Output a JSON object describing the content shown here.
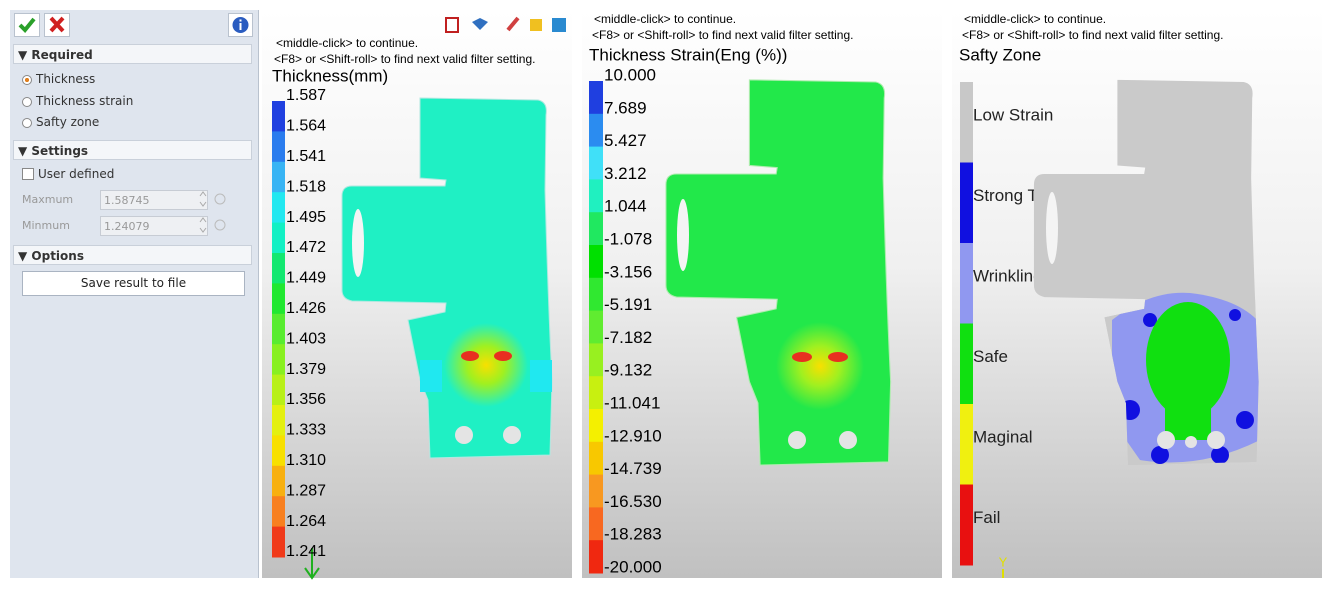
{
  "panel": {
    "required": {
      "title": "Required",
      "options": [
        "Thickness",
        "Thickness strain",
        "Safty zone"
      ]
    },
    "settings": {
      "title": "Settings",
      "checkbox": "User defined",
      "fields": [
        {
          "label": "Maxmum",
          "value": "1.58745"
        },
        {
          "label": "Minmum",
          "value": "1.24079"
        }
      ]
    },
    "options": {
      "title": "Options",
      "button": "Save result to file"
    }
  },
  "views": [
    {
      "hints": [
        "<middle-click> to continue.",
        "<F8> or <Shift-roll> to find next valid filter setting."
      ],
      "legend": {
        "title": "Thickness(mm)",
        "labels": [
          "1.587",
          "1.564",
          "1.541",
          "1.518",
          "1.495",
          "1.472",
          "1.449",
          "1.426",
          "1.403",
          "1.379",
          "1.356",
          "1.333",
          "1.310",
          "1.287",
          "1.264",
          "1.241"
        ],
        "colors": [
          "#2040e0",
          "#2a7cee",
          "#38b4f4",
          "#22e8f0",
          "#12f0c4",
          "#12e870",
          "#20e830",
          "#58ec30",
          "#88f020",
          "#b8f018",
          "#e4f010",
          "#f8e000",
          "#f8b010",
          "#f88020",
          "#f03a1a"
        ]
      }
    },
    {
      "hints": [
        "<middle-click> to continue.",
        "<F8> or <Shift-roll> to find next valid filter setting."
      ],
      "legend": {
        "title": "Thickness Strain(Eng (%))",
        "labels": [
          "10.000",
          "7.689",
          "5.427",
          "3.212",
          "1.044",
          "-1.078",
          "-3.156",
          "-5.191",
          "-7.182",
          "-9.132",
          "-11.041",
          "-12.910",
          "-14.739",
          "-16.530",
          "-18.283",
          "-20.000"
        ],
        "colors": [
          "#1f3fe0",
          "#2b8cf0",
          "#40e0f8",
          "#20f0c0",
          "#20e860",
          "#00e000",
          "#30e830",
          "#60ec30",
          "#98f020",
          "#c8f010",
          "#f4f000",
          "#f8c800",
          "#f89820",
          "#f86820",
          "#f02810"
        ]
      }
    },
    {
      "hints": [
        "<middle-click> to continue.",
        "<F8> or <Shift-roll> to find next valid filter setting."
      ],
      "legend": {
        "title": "Safty Zone",
        "labels": [
          "Low Strain",
          "Strong Thinning",
          "Wrinkling",
          "Safe",
          "Maginal",
          "Fail"
        ],
        "colors": [
          "#c8c8c8",
          "#1010e0",
          "#9098f0",
          "#10e010",
          "#f0f010",
          "#e81010"
        ]
      },
      "axis_label": "Y"
    }
  ]
}
